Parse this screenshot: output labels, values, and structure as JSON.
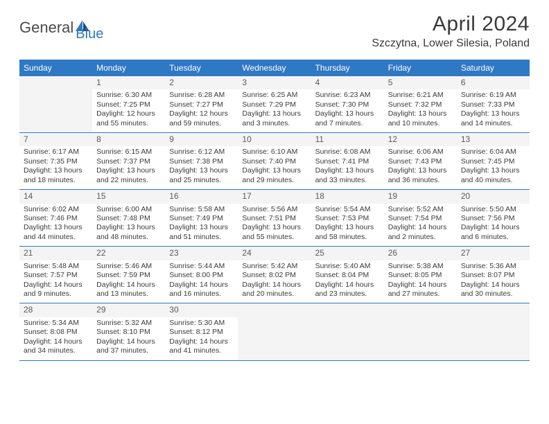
{
  "logo": {
    "part1": "General",
    "part2": "Blue"
  },
  "title": "April 2024",
  "location": "Szczytna, Lower Silesia, Poland",
  "colors": {
    "header_bg": "#2f78c4",
    "header_text": "#ffffff",
    "body_text": "#3a3a3a",
    "daynum_bg": "#f4f4f4",
    "border": "#2f78c4"
  },
  "day_names": [
    "Sunday",
    "Monday",
    "Tuesday",
    "Wednesday",
    "Thursday",
    "Friday",
    "Saturday"
  ],
  "weeks": [
    [
      null,
      {
        "n": "1",
        "sr": "6:30 AM",
        "ss": "7:25 PM",
        "d1": "12 hours",
        "d2": "and 55 minutes."
      },
      {
        "n": "2",
        "sr": "6:28 AM",
        "ss": "7:27 PM",
        "d1": "12 hours",
        "d2": "and 59 minutes."
      },
      {
        "n": "3",
        "sr": "6:25 AM",
        "ss": "7:29 PM",
        "d1": "13 hours",
        "d2": "and 3 minutes."
      },
      {
        "n": "4",
        "sr": "6:23 AM",
        "ss": "7:30 PM",
        "d1": "13 hours",
        "d2": "and 7 minutes."
      },
      {
        "n": "5",
        "sr": "6:21 AM",
        "ss": "7:32 PM",
        "d1": "13 hours",
        "d2": "and 10 minutes."
      },
      {
        "n": "6",
        "sr": "6:19 AM",
        "ss": "7:33 PM",
        "d1": "13 hours",
        "d2": "and 14 minutes."
      }
    ],
    [
      {
        "n": "7",
        "sr": "6:17 AM",
        "ss": "7:35 PM",
        "d1": "13 hours",
        "d2": "and 18 minutes."
      },
      {
        "n": "8",
        "sr": "6:15 AM",
        "ss": "7:37 PM",
        "d1": "13 hours",
        "d2": "and 22 minutes."
      },
      {
        "n": "9",
        "sr": "6:12 AM",
        "ss": "7:38 PM",
        "d1": "13 hours",
        "d2": "and 25 minutes."
      },
      {
        "n": "10",
        "sr": "6:10 AM",
        "ss": "7:40 PM",
        "d1": "13 hours",
        "d2": "and 29 minutes."
      },
      {
        "n": "11",
        "sr": "6:08 AM",
        "ss": "7:41 PM",
        "d1": "13 hours",
        "d2": "and 33 minutes."
      },
      {
        "n": "12",
        "sr": "6:06 AM",
        "ss": "7:43 PM",
        "d1": "13 hours",
        "d2": "and 36 minutes."
      },
      {
        "n": "13",
        "sr": "6:04 AM",
        "ss": "7:45 PM",
        "d1": "13 hours",
        "d2": "and 40 minutes."
      }
    ],
    [
      {
        "n": "14",
        "sr": "6:02 AM",
        "ss": "7:46 PM",
        "d1": "13 hours",
        "d2": "and 44 minutes."
      },
      {
        "n": "15",
        "sr": "6:00 AM",
        "ss": "7:48 PM",
        "d1": "13 hours",
        "d2": "and 48 minutes."
      },
      {
        "n": "16",
        "sr": "5:58 AM",
        "ss": "7:49 PM",
        "d1": "13 hours",
        "d2": "and 51 minutes."
      },
      {
        "n": "17",
        "sr": "5:56 AM",
        "ss": "7:51 PM",
        "d1": "13 hours",
        "d2": "and 55 minutes."
      },
      {
        "n": "18",
        "sr": "5:54 AM",
        "ss": "7:53 PM",
        "d1": "13 hours",
        "d2": "and 58 minutes."
      },
      {
        "n": "19",
        "sr": "5:52 AM",
        "ss": "7:54 PM",
        "d1": "14 hours",
        "d2": "and 2 minutes."
      },
      {
        "n": "20",
        "sr": "5:50 AM",
        "ss": "7:56 PM",
        "d1": "14 hours",
        "d2": "and 6 minutes."
      }
    ],
    [
      {
        "n": "21",
        "sr": "5:48 AM",
        "ss": "7:57 PM",
        "d1": "14 hours",
        "d2": "and 9 minutes."
      },
      {
        "n": "22",
        "sr": "5:46 AM",
        "ss": "7:59 PM",
        "d1": "14 hours",
        "d2": "and 13 minutes."
      },
      {
        "n": "23",
        "sr": "5:44 AM",
        "ss": "8:00 PM",
        "d1": "14 hours",
        "d2": "and 16 minutes."
      },
      {
        "n": "24",
        "sr": "5:42 AM",
        "ss": "8:02 PM",
        "d1": "14 hours",
        "d2": "and 20 minutes."
      },
      {
        "n": "25",
        "sr": "5:40 AM",
        "ss": "8:04 PM",
        "d1": "14 hours",
        "d2": "and 23 minutes."
      },
      {
        "n": "26",
        "sr": "5:38 AM",
        "ss": "8:05 PM",
        "d1": "14 hours",
        "d2": "and 27 minutes."
      },
      {
        "n": "27",
        "sr": "5:36 AM",
        "ss": "8:07 PM",
        "d1": "14 hours",
        "d2": "and 30 minutes."
      }
    ],
    [
      {
        "n": "28",
        "sr": "5:34 AM",
        "ss": "8:08 PM",
        "d1": "14 hours",
        "d2": "and 34 minutes."
      },
      {
        "n": "29",
        "sr": "5:32 AM",
        "ss": "8:10 PM",
        "d1": "14 hours",
        "d2": "and 37 minutes."
      },
      {
        "n": "30",
        "sr": "5:30 AM",
        "ss": "8:12 PM",
        "d1": "14 hours",
        "d2": "and 41 minutes."
      },
      null,
      null,
      null,
      null
    ]
  ],
  "labels": {
    "sunrise": "Sunrise:",
    "sunset": "Sunset:",
    "daylight": "Daylight:"
  }
}
